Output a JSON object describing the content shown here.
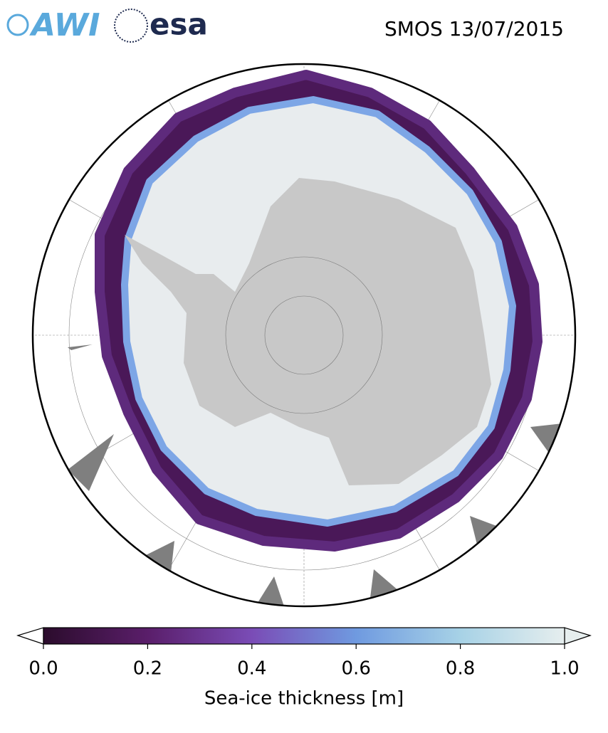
{
  "header": {
    "logos": [
      "AWI",
      "esa"
    ],
    "title": "SMOS 13/07/2015"
  },
  "colorbar": {
    "label": "Sea-ice thickness [m]",
    "range": [
      0,
      1
    ],
    "ticks": [
      {
        "value": 0,
        "label": "0.0"
      },
      {
        "value": 0.2,
        "label": "0.2"
      },
      {
        "value": 0.4,
        "label": "0.4"
      },
      {
        "value": 0.6,
        "label": "0.6"
      },
      {
        "value": 0.8,
        "label": "0.8"
      },
      {
        "value": 1,
        "label": "1.0"
      }
    ]
  }
}
